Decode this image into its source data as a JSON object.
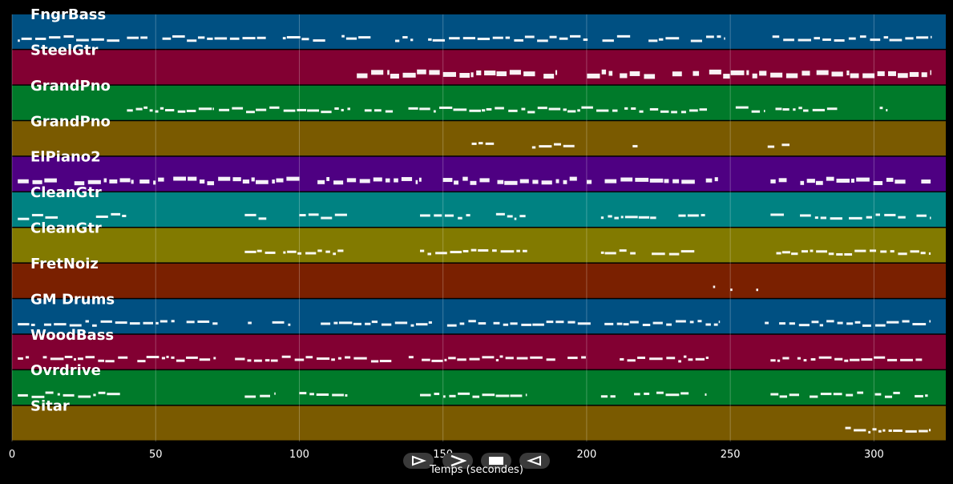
{
  "chart_data": {
    "type": "piano-roll",
    "xlabel": "Temps (secondes)",
    "xlim": [
      0,
      325
    ],
    "x_ticks": [
      0,
      50,
      100,
      150,
      200,
      250,
      300
    ],
    "grid": true,
    "tracks": [
      {
        "name": "FngrBass",
        "color": "#005082",
        "notes": [
          [
            2,
            38
          ],
          [
            40,
            248
          ],
          [
            262,
            320
          ]
        ]
      },
      {
        "name": "SteelGtr",
        "color": "#820032",
        "notes": [
          [
            120,
            124
          ],
          [
            125,
            135
          ],
          [
            136,
            183
          ],
          [
            185,
            190
          ],
          [
            195,
            278
          ],
          [
            280,
            320
          ]
        ]
      },
      {
        "name": "GrandPno",
        "color": "#007a2a",
        "notes": [
          [
            40,
            70
          ],
          [
            72,
            118
          ],
          [
            120,
            220
          ],
          [
            222,
            262
          ],
          [
            264,
            292
          ],
          [
            302,
            305
          ]
        ]
      },
      {
        "name": "GrandPno",
        "color": "#7a5a00",
        "notes": [
          [
            160,
            168
          ],
          [
            181,
            200
          ],
          [
            216,
            218
          ],
          [
            263,
            272
          ]
        ]
      },
      {
        "name": "ElPiano2",
        "color": "#4e0082",
        "notes": [
          [
            2,
            120
          ],
          [
            121,
            202
          ],
          [
            204,
            246
          ],
          [
            264,
            320
          ]
        ]
      },
      {
        "name": "CleanGtr",
        "color": "#008282",
        "notes": [
          [
            2,
            40
          ],
          [
            81,
            92
          ],
          [
            100,
            117
          ],
          [
            142,
            179
          ],
          [
            205,
            242
          ],
          [
            264,
            320
          ]
        ]
      },
      {
        "name": "CleanGtr",
        "color": "#827a00",
        "notes": [
          [
            81,
            118
          ],
          [
            142,
            182
          ],
          [
            205,
            245
          ],
          [
            266,
            320
          ]
        ]
      },
      {
        "name": "FretNoiz",
        "color": "#7a2000",
        "notes": [
          [
            244,
            245
          ],
          [
            250,
            251
          ],
          [
            259,
            260
          ]
        ]
      },
      {
        "name": "GM Drums",
        "color": "#005082",
        "notes": [
          [
            2,
            246
          ],
          [
            262,
            320
          ]
        ]
      },
      {
        "name": "WoodBass",
        "color": "#820032",
        "notes": [
          [
            2,
            200
          ],
          [
            205,
            245
          ],
          [
            264,
            317
          ]
        ]
      },
      {
        "name": "Ovrdrive",
        "color": "#007a2a",
        "notes": [
          [
            2,
            40
          ],
          [
            81,
            92
          ],
          [
            100,
            117
          ],
          [
            142,
            179
          ],
          [
            205,
            242
          ],
          [
            264,
            320
          ]
        ]
      },
      {
        "name": "Sitar",
        "color": "#7a5a00",
        "notes": [
          [
            288,
            320
          ]
        ]
      }
    ]
  },
  "controls": {
    "colors": {
      "button_bg": "#3a3a3a",
      "note": "#ffffff"
    }
  }
}
